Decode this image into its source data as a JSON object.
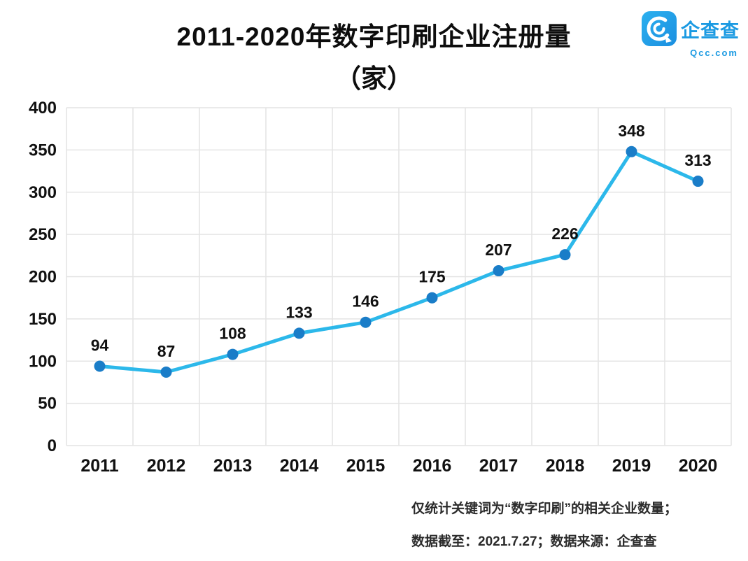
{
  "title": {
    "line1": "2011-2020年数字印刷企业注册量",
    "line2": "（家）"
  },
  "logo": {
    "name": "企查查",
    "domain": "Qcc.com",
    "brand_color": "#1b9ae2"
  },
  "chart_data": {
    "type": "line",
    "title": "2011-2020年数字印刷企业注册量（家）",
    "categories": [
      "2011",
      "2012",
      "2013",
      "2014",
      "2015",
      "2016",
      "2017",
      "2018",
      "2019",
      "2020"
    ],
    "values": [
      94,
      87,
      108,
      133,
      146,
      175,
      207,
      226,
      348,
      313
    ],
    "xlabel": "",
    "ylabel": "",
    "ylim": [
      0,
      400
    ],
    "ytick_step": 50,
    "grid": "on",
    "legend": "none",
    "line_color": "#2cb8ea",
    "marker_color": "#1a7dc8",
    "grid_color": "#e4e4e4",
    "label_color": "#111111"
  },
  "footnote": {
    "line1": "仅统计关键词为“数字印刷”的相关企业数量；",
    "line2": "数据截至：2021.7.27；数据来源：企查查"
  }
}
